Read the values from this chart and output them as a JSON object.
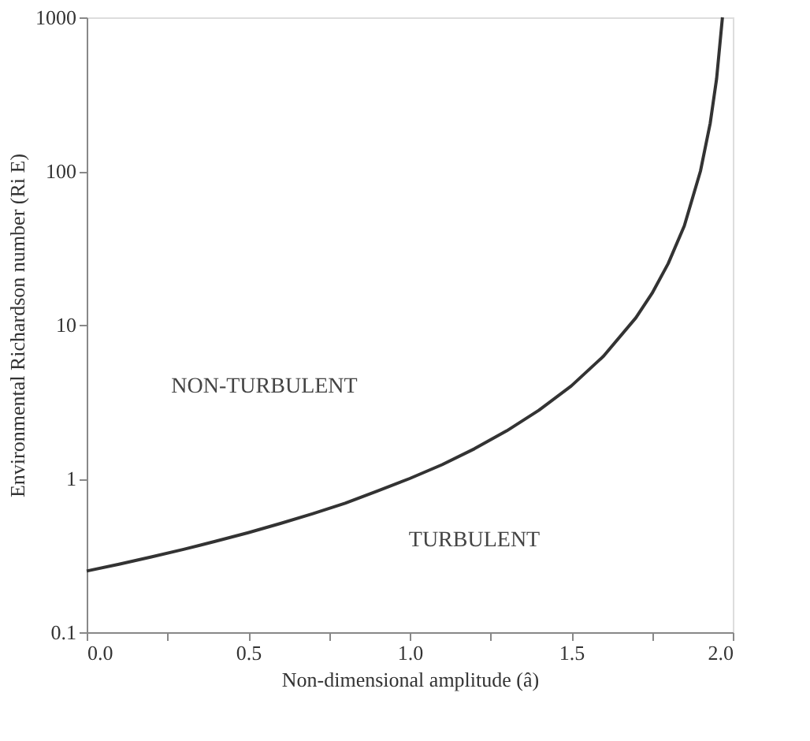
{
  "chart_data": {
    "type": "line",
    "xlabel": "Non-dimensional amplitude (â)",
    "ylabel": "Environmental Richardson number (Ri E)",
    "x": [
      0,
      0.1,
      0.2,
      0.3,
      0.4,
      0.5,
      0.6,
      0.7,
      0.8,
      0.9,
      1.0,
      1.1,
      1.2,
      1.3,
      1.4,
      1.5,
      1.6,
      1.7,
      1.75,
      1.8,
      1.85,
      1.9,
      1.93,
      1.95,
      1.968
    ],
    "series": [
      {
        "color": "#333333",
        "values": [
          0.25,
          0.277,
          0.309,
          0.346,
          0.391,
          0.444,
          0.51,
          0.59,
          0.69,
          0.83,
          1.0,
          1.23,
          1.56,
          2.04,
          2.78,
          4.0,
          6.25,
          11.1,
          16,
          25,
          44,
          100,
          204,
          400,
          1000
        ]
      }
    ],
    "xlim": [
      0,
      2
    ],
    "xticks": [
      {
        "value": 0,
        "label": "0.0"
      },
      {
        "value": 0.25,
        "label": null
      },
      {
        "value": 0.5,
        "label": "0.5"
      },
      {
        "value": 0.75,
        "label": null
      },
      {
        "value": 1,
        "label": "1.0"
      },
      {
        "value": 1.25,
        "label": null
      },
      {
        "value": 1.5,
        "label": "1.5"
      },
      {
        "value": 1.75,
        "label": null
      },
      {
        "value": 2,
        "label": "2.0"
      }
    ],
    "ylim": [
      0.1,
      1000
    ],
    "yticks": [
      0.1,
      1,
      10,
      100,
      1000
    ],
    "log": "y",
    "grid": false,
    "legend": false,
    "marker": "none",
    "line_style": "solid",
    "annotations": [
      "NON-TURBULENT",
      "TURBULENT"
    ]
  }
}
